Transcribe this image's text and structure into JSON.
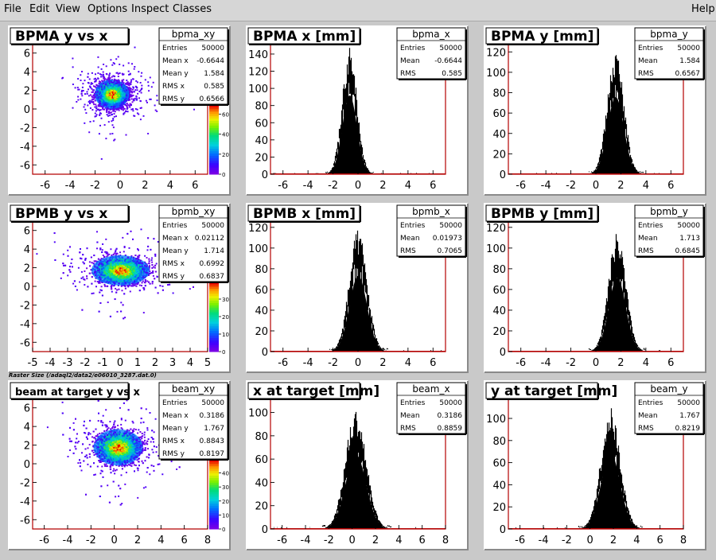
{
  "menubar": {
    "items": [
      "File",
      "Edit",
      "View",
      "Options",
      "Inspect",
      "Classes"
    ],
    "help": "Help"
  },
  "caption": "Raster Size (/adaql2/data2/e06010_3287.dat.0)",
  "colors": {
    "background": "#c9c9c9",
    "pad_fill": "#ffffff",
    "frame_line": "#b30000",
    "histogram": "#000000"
  },
  "pads": [
    {
      "id": "bpma-xy",
      "title": "BPMA y vs x",
      "stats": {
        "name": "bpma_xy",
        "rows": [
          [
            "Entries",
            "50000"
          ],
          [
            "Mean x",
            "-0.6644"
          ],
          [
            "Mean y",
            "1.584"
          ],
          [
            "RMS x",
            "0.585"
          ],
          [
            "RMS y",
            "0.6566"
          ]
        ]
      },
      "chart_data": {
        "type": "heatmap",
        "title": "BPMA y vs x",
        "xlim": [
          -7,
          7
        ],
        "ylim": [
          -7,
          7
        ],
        "x_ticks": [
          -6,
          -4,
          -2,
          0,
          2,
          4,
          6
        ],
        "y_ticks": [
          -6,
          -4,
          -2,
          0,
          2,
          4,
          6
        ],
        "mean_x": -0.6644,
        "mean_y": 1.584,
        "rms_x": 0.585,
        "rms_y": 0.6566,
        "entries": 50000,
        "palette_ticks": [
          0,
          20,
          40,
          60
        ],
        "palette_max": 70
      }
    },
    {
      "id": "bpma-x",
      "title": "BPMA x [mm]",
      "stats": {
        "name": "bpma_x",
        "rows": [
          [
            "Entries",
            "50000"
          ],
          [
            "Mean",
            "-0.6644"
          ],
          [
            "RMS",
            "0.585"
          ]
        ]
      },
      "chart_data": {
        "type": "bar",
        "title": "BPMA x [mm]",
        "xlim": [
          -7,
          7
        ],
        "ylim": [
          0,
          152
        ],
        "x_ticks": [
          -6,
          -4,
          -2,
          0,
          2,
          4,
          6
        ],
        "y_ticks": [
          0,
          20,
          40,
          60,
          80,
          100,
          120,
          140
        ],
        "mean": -0.6644,
        "rms": 0.585,
        "peak": 148,
        "entries": 50000
      }
    },
    {
      "id": "bpma-y",
      "title": "BPMA y [mm]",
      "stats": {
        "name": "bpma_y",
        "rows": [
          [
            "Entries",
            "50000"
          ],
          [
            "Mean",
            "1.584"
          ],
          [
            "RMS",
            "0.6567"
          ]
        ]
      },
      "chart_data": {
        "type": "bar",
        "title": "BPMA y [mm]",
        "xlim": [
          -7,
          7
        ],
        "ylim": [
          0,
          128
        ],
        "x_ticks": [
          -6,
          -4,
          -2,
          0,
          2,
          4,
          6
        ],
        "y_ticks": [
          0,
          20,
          40,
          60,
          80,
          100,
          120
        ],
        "mean": 1.584,
        "rms": 0.6567,
        "peak": 122,
        "entries": 50000
      }
    },
    {
      "id": "bpmb-xy",
      "title": "BPMB y vs x",
      "stats": {
        "name": "bpmb_xy",
        "rows": [
          [
            "Entries",
            "50000"
          ],
          [
            "Mean x",
            "0.02112"
          ],
          [
            "Mean y",
            "1.714"
          ],
          [
            "RMS x",
            "0.6992"
          ],
          [
            "RMS y",
            "0.6837"
          ]
        ]
      },
      "chart_data": {
        "type": "heatmap",
        "title": "BPMB y vs x",
        "xlim": [
          -5,
          5
        ],
        "ylim": [
          -7,
          7
        ],
        "x_ticks": [
          -5,
          -4,
          -3,
          -2,
          -1,
          0,
          1,
          2,
          3,
          4,
          5
        ],
        "y_ticks": [
          -6,
          -4,
          -2,
          0,
          2,
          4,
          6
        ],
        "mean_x": 0.02112,
        "mean_y": 1.714,
        "rms_x": 0.6992,
        "rms_y": 0.6837,
        "entries": 50000,
        "palette_ticks": [
          0,
          10,
          20,
          30
        ],
        "palette_max": 40
      }
    },
    {
      "id": "bpmb-x",
      "title": "BPMB x [mm]",
      "stats": {
        "name": "bpmb_x",
        "rows": [
          [
            "Entries",
            "50000"
          ],
          [
            "Mean",
            "0.01973"
          ],
          [
            "RMS",
            "0.7065"
          ]
        ]
      },
      "chart_data": {
        "type": "bar",
        "title": "BPMB x [mm]",
        "xlim": [
          -7,
          7
        ],
        "ylim": [
          0,
          126
        ],
        "x_ticks": [
          -6,
          -4,
          -2,
          0,
          2,
          4,
          6
        ],
        "y_ticks": [
          0,
          20,
          40,
          60,
          80,
          100,
          120
        ],
        "mean": 0.01973,
        "rms": 0.7065,
        "peak": 118,
        "entries": 50000
      }
    },
    {
      "id": "bpmb-y",
      "title": "BPMB y [mm]",
      "stats": {
        "name": "bpmb_y",
        "rows": [
          [
            "Entries",
            "50000"
          ],
          [
            "Mean",
            "1.713"
          ],
          [
            "RMS",
            "0.6845"
          ]
        ]
      },
      "chart_data": {
        "type": "bar",
        "title": "BPMB y [mm]",
        "xlim": [
          -7,
          7
        ],
        "ylim": [
          0,
          126
        ],
        "x_ticks": [
          -6,
          -4,
          -2,
          0,
          2,
          4,
          6
        ],
        "y_ticks": [
          0,
          20,
          40,
          60,
          80,
          100,
          120
        ],
        "mean": 1.713,
        "rms": 0.6845,
        "peak": 115,
        "entries": 50000
      }
    },
    {
      "id": "beam-xy",
      "title": "beam at target y vs x",
      "stats": {
        "name": "beam_xy",
        "rows": [
          [
            "Entries",
            "50000"
          ],
          [
            "Mean x",
            "0.3186"
          ],
          [
            "Mean y",
            "1.767"
          ],
          [
            "RMS x",
            "0.8843"
          ],
          [
            "RMS y",
            "0.8197"
          ]
        ]
      },
      "chart_data": {
        "type": "heatmap",
        "title": "beam at target y vs x",
        "xlim": [
          -7,
          8
        ],
        "ylim": [
          -7,
          7
        ],
        "x_ticks": [
          -6,
          -4,
          -2,
          0,
          2,
          4,
          6,
          8
        ],
        "y_ticks": [
          -6,
          -4,
          -2,
          0,
          2,
          4,
          6
        ],
        "mean_x": 0.3186,
        "mean_y": 1.767,
        "rms_x": 0.8843,
        "rms_y": 0.8197,
        "entries": 50000,
        "palette_ticks": [
          0,
          10,
          20,
          30,
          40
        ],
        "palette_max": 50
      }
    },
    {
      "id": "beam-x",
      "title": "x at target [mm]",
      "stats": {
        "name": "beam_x",
        "rows": [
          [
            "Entries",
            "50000"
          ],
          [
            "Mean",
            "0.3186"
          ],
          [
            "RMS",
            "0.8859"
          ]
        ]
      },
      "chart_data": {
        "type": "bar",
        "title": "x at target [mm]",
        "xlim": [
          -7,
          8
        ],
        "ylim": [
          0,
          112
        ],
        "x_ticks": [
          -6,
          -4,
          -2,
          0,
          2,
          4,
          6,
          8
        ],
        "y_ticks": [
          0,
          20,
          40,
          60,
          80,
          100
        ],
        "mean": 0.3186,
        "rms": 0.8859,
        "peak": 103,
        "entries": 50000
      }
    },
    {
      "id": "beam-y",
      "title": "y at target [mm]",
      "stats": {
        "name": "beam_y",
        "rows": [
          [
            "Entries",
            "50000"
          ],
          [
            "Mean",
            "1.767"
          ],
          [
            "RMS",
            "0.8219"
          ]
        ]
      },
      "chart_data": {
        "type": "bar",
        "title": "y at target [mm]",
        "xlim": [
          -7,
          8
        ],
        "ylim": [
          0,
          118
        ],
        "x_ticks": [
          -6,
          -4,
          -2,
          0,
          2,
          4,
          6,
          8
        ],
        "y_ticks": [
          0,
          20,
          40,
          60,
          80,
          100
        ],
        "mean": 1.767,
        "rms": 0.8219,
        "peak": 110,
        "entries": 50000
      }
    }
  ]
}
